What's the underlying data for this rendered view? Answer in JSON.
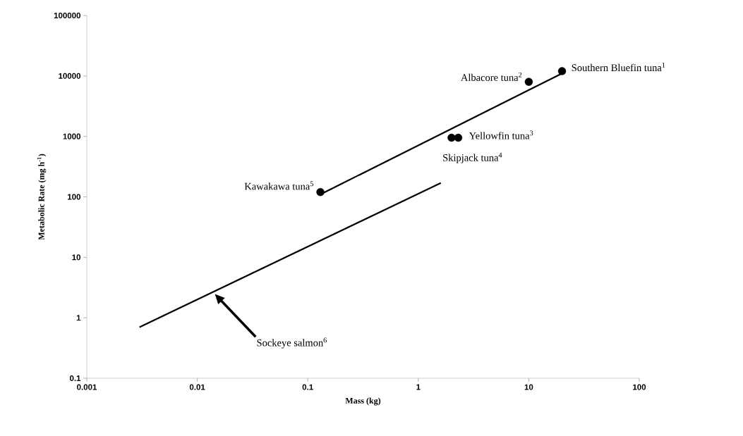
{
  "chart_data": {
    "type": "scatter",
    "xlabel": "Mass (kg)",
    "ylabel": "Metabolic Rate (mg h$^{-1}$)",
    "log": "xy",
    "grid": false,
    "xlim": [
      0.001,
      100
    ],
    "ylim": [
      0.1,
      100000
    ],
    "xticks": [
      0.001,
      0.01,
      0.1,
      1,
      10,
      100
    ],
    "yticks": [
      0.1,
      1,
      10,
      100,
      1000,
      10000,
      100000
    ],
    "series": [
      {
        "type": "scatter",
        "color": "#000000",
        "marker": "circle",
        "x": [
          20,
          10,
          2.3,
          2.0,
          0.13
        ],
        "values": [
          12000,
          8000,
          950,
          950,
          120
        ]
      },
      {
        "type": "line",
        "color": "#000000",
        "marker": "none",
        "line_style": "solid",
        "x": [
          0.13,
          20
        ],
        "values": [
          110,
          11000
        ]
      },
      {
        "type": "line",
        "color": "#000000",
        "marker": "none",
        "line_style": "solid",
        "x": [
          0.003,
          1.6
        ],
        "values": [
          0.7,
          170
        ]
      }
    ],
    "annotations": [
      {
        "text": "Southern Bluefin tuna$^{1}$",
        "x": 20,
        "y": 12000
      },
      {
        "text": "Albacore tuna$^{2}$",
        "x": 10,
        "y": 8000
      },
      {
        "text": "Yellowfin tuna$^{3}$",
        "x": 2.3,
        "y": 950
      },
      {
        "text": "Skipjack tuna$^{4}$",
        "x": 2.0,
        "y": 950
      },
      {
        "text": "Kawakawa tuna$^{5}$",
        "x": 0.13,
        "y": 120
      },
      "Sockeye salmon$^{6}$"
    ]
  }
}
